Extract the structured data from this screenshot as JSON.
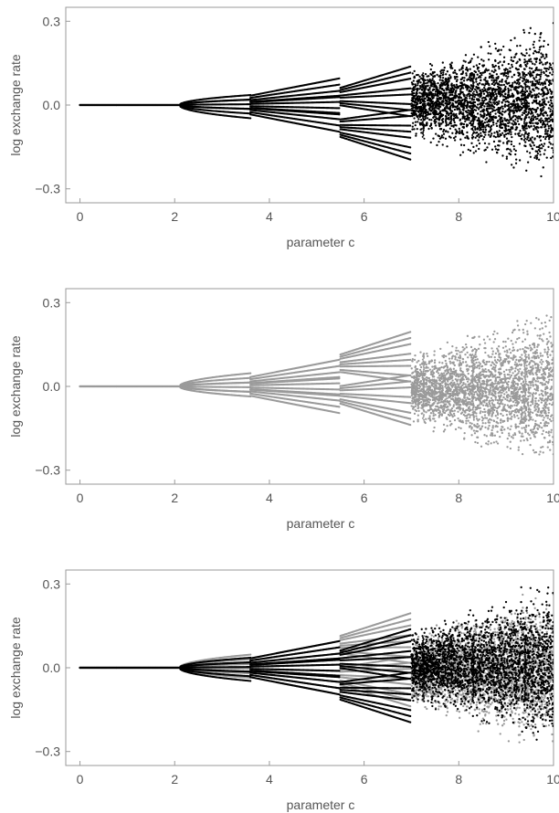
{
  "chart_data": [
    {
      "type": "scatter",
      "panel": "top",
      "xlabel": "parameter c",
      "ylabel": "log  exchange rate",
      "xlim": [
        -0.3,
        10.0
      ],
      "ylim": [
        -0.35,
        0.35
      ],
      "x_ticks": [
        0,
        2,
        4,
        6,
        8,
        10
      ],
      "y_ticks": [
        -0.3,
        0.0,
        0.3
      ],
      "x_tick_labels": [
        "0",
        "2",
        "4",
        "6",
        "8",
        "10"
      ],
      "y_tick_labels": [
        "−0.3",
        "0.0",
        "0.3"
      ],
      "grid": false,
      "series": [
        {
          "color": "#000000",
          "sign": 1,
          "bifurcation": {
            "stable_end": 2.1,
            "regimes": [
              {
                "x_range": [
                  2.1,
                  3.6
                ],
                "max_amplitude": 0.05,
                "branches": 8
              },
              {
                "x_range": [
                  3.6,
                  5.5
                ],
                "max_amplitude": 0.1,
                "branches": 12
              },
              {
                "x_range": [
                  5.5,
                  7.0
                ],
                "max_amplitude": 0.13,
                "branches": 16
              },
              {
                "x_range": [
                  7.0,
                  10.0
                ],
                "max_amplitude": 0.33,
                "branches": 0
              }
            ]
          }
        }
      ]
    },
    {
      "type": "scatter",
      "panel": "middle",
      "xlabel": "parameter c",
      "ylabel": "log  exchange rate",
      "xlim": [
        -0.3,
        10.0
      ],
      "ylim": [
        -0.35,
        0.35
      ],
      "x_ticks": [
        0,
        2,
        4,
        6,
        8,
        10
      ],
      "y_ticks": [
        -0.3,
        0.0,
        0.3
      ],
      "x_tick_labels": [
        "0",
        "2",
        "4",
        "6",
        "8",
        "10"
      ],
      "y_tick_labels": [
        "−0.3",
        "0.0",
        "0.3"
      ],
      "grid": false,
      "series": [
        {
          "color": "#9a9a9a",
          "sign": -1,
          "bifurcation": {
            "stable_end": 2.1,
            "regimes": [
              {
                "x_range": [
                  2.1,
                  3.6
                ],
                "max_amplitude": 0.05,
                "branches": 8
              },
              {
                "x_range": [
                  3.6,
                  5.5
                ],
                "max_amplitude": 0.1,
                "branches": 12
              },
              {
                "x_range": [
                  5.5,
                  7.0
                ],
                "max_amplitude": 0.13,
                "branches": 16
              },
              {
                "x_range": [
                  7.0,
                  10.0
                ],
                "max_amplitude": 0.33,
                "branches": 0
              }
            ]
          }
        }
      ]
    },
    {
      "type": "scatter",
      "panel": "bottom",
      "xlabel": "parameter c",
      "ylabel": "log  exchange rate",
      "xlim": [
        -0.3,
        10.0
      ],
      "ylim": [
        -0.35,
        0.35
      ],
      "x_ticks": [
        0,
        2,
        4,
        6,
        8,
        10
      ],
      "y_ticks": [
        -0.3,
        0.0,
        0.3
      ],
      "x_tick_labels": [
        "0",
        "2",
        "4",
        "6",
        "8",
        "10"
      ],
      "y_tick_labels": [
        "−0.3",
        "0.0",
        "0.3"
      ],
      "grid": false,
      "series": [
        {
          "color": "#9a9a9a",
          "sign": -1,
          "bifurcation": {
            "stable_end": 2.1,
            "regimes": [
              {
                "x_range": [
                  2.1,
                  3.6
                ],
                "max_amplitude": 0.05,
                "branches": 8
              },
              {
                "x_range": [
                  3.6,
                  5.5
                ],
                "max_amplitude": 0.1,
                "branches": 12
              },
              {
                "x_range": [
                  5.5,
                  7.0
                ],
                "max_amplitude": 0.13,
                "branches": 16
              },
              {
                "x_range": [
                  7.0,
                  10.0
                ],
                "max_amplitude": 0.33,
                "branches": 0
              }
            ]
          }
        },
        {
          "color": "#000000",
          "sign": 1,
          "bifurcation": {
            "stable_end": 2.1,
            "regimes": [
              {
                "x_range": [
                  2.1,
                  3.6
                ],
                "max_amplitude": 0.05,
                "branches": 8
              },
              {
                "x_range": [
                  3.6,
                  5.5
                ],
                "max_amplitude": 0.1,
                "branches": 12
              },
              {
                "x_range": [
                  5.5,
                  7.0
                ],
                "max_amplitude": 0.13,
                "branches": 16
              },
              {
                "x_range": [
                  7.0,
                  10.0
                ],
                "max_amplitude": 0.33,
                "branches": 0
              }
            ]
          }
        }
      ]
    }
  ]
}
